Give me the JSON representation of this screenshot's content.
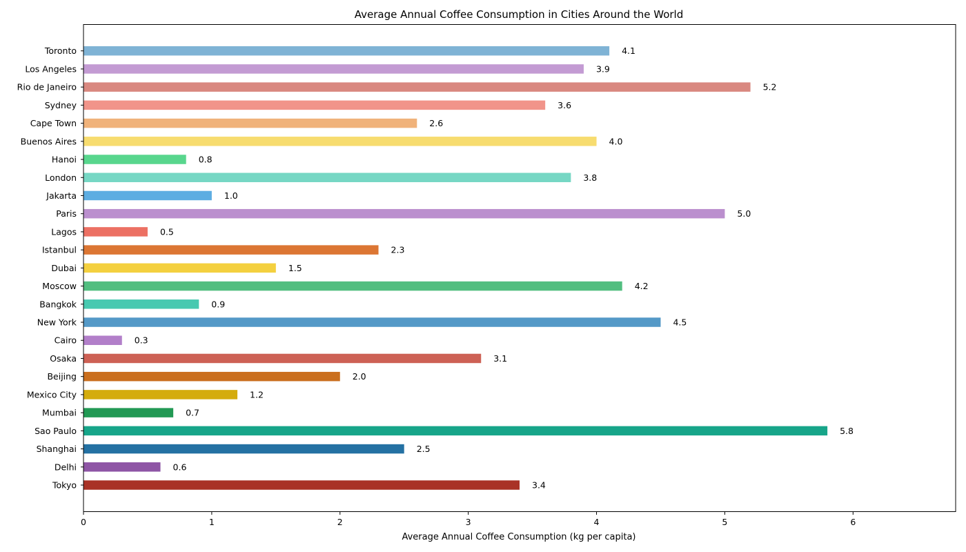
{
  "chart_data": {
    "type": "bar",
    "orientation": "horizontal",
    "title": "Average Annual Coffee Consumption in Cities Around the World",
    "xlabel": "Average Annual Coffee Consumption (kg per capita)",
    "ylabel": "",
    "xlim": [
      0,
      6.8
    ],
    "xticks": [
      0,
      1,
      2,
      3,
      4,
      5,
      6
    ],
    "grid": false,
    "categories": [
      "Tokyo",
      "Delhi",
      "Shanghai",
      "Sao Paulo",
      "Mumbai",
      "Mexico City",
      "Beijing",
      "Osaka",
      "Cairo",
      "New York",
      "Bangkok",
      "Moscow",
      "Dubai",
      "Istanbul",
      "Lagos",
      "Paris",
      "Jakarta",
      "London",
      "Hanoi",
      "Buenos Aires",
      "Cape Town",
      "Sydney",
      "Rio de Janeiro",
      "Los Angeles",
      "Toronto"
    ],
    "values": [
      3.4,
      0.6,
      2.5,
      5.8,
      0.7,
      1.2,
      2.0,
      3.1,
      0.3,
      4.5,
      0.9,
      4.2,
      1.5,
      2.3,
      0.5,
      5.0,
      1.0,
      3.8,
      0.8,
      4.0,
      2.6,
      3.6,
      5.2,
      3.9,
      4.1
    ],
    "data_labels": [
      "3.4",
      "0.6",
      "2.5",
      "5.8",
      "0.7",
      "1.2",
      "2.0",
      "3.1",
      "0.3",
      "4.5",
      "0.9",
      "4.2",
      "1.5",
      "2.3",
      "0.5",
      "5.0",
      "1.0",
      "3.8",
      "0.8",
      "4.0",
      "2.6",
      "3.6",
      "5.2",
      "3.9",
      "4.1"
    ],
    "colors": [
      "#a93226",
      "#8e55a5",
      "#2471a3",
      "#17a589",
      "#229954",
      "#d4ac0d",
      "#ca6f1e",
      "#cd6155",
      "#b27fc9",
      "#5499c7",
      "#48c9b0",
      "#52be80",
      "#f4d03f",
      "#dc7633",
      "#ec7063",
      "#bb8fce",
      "#5dade2",
      "#76d7c4",
      "#58d68d",
      "#f7dc6f",
      "#f0b27a",
      "#f1948a",
      "#d98880",
      "#c39bd3",
      "#7fb3d5"
    ]
  }
}
